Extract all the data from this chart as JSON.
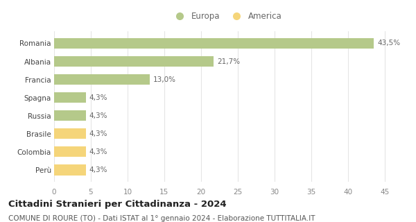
{
  "categories": [
    "Perù",
    "Colombia",
    "Brasile",
    "Russia",
    "Spagna",
    "Francia",
    "Albania",
    "Romania"
  ],
  "values": [
    4.3,
    4.3,
    4.3,
    4.3,
    4.3,
    13.0,
    21.7,
    43.5
  ],
  "labels": [
    "4,3%",
    "4,3%",
    "4,3%",
    "4,3%",
    "4,3%",
    "13,0%",
    "21,7%",
    "43,5%"
  ],
  "colors": [
    "#f5d57a",
    "#f5d57a",
    "#f5d57a",
    "#b5c98a",
    "#b5c98a",
    "#b5c98a",
    "#b5c98a",
    "#b5c98a"
  ],
  "europa_color": "#b5c98a",
  "america_color": "#f5d57a",
  "title": "Cittadini Stranieri per Cittadinanza - 2024",
  "subtitle": "COMUNE DI ROURE (TO) - Dati ISTAT al 1° gennaio 2024 - Elaborazione TUTTITALIA.IT",
  "xlim": [
    0,
    47
  ],
  "xticks": [
    0,
    5,
    10,
    15,
    20,
    25,
    30,
    35,
    40,
    45
  ],
  "grid_color": "#e5e5e5",
  "background_color": "#ffffff",
  "bar_height": 0.6,
  "title_fontsize": 9.5,
  "subtitle_fontsize": 7.5,
  "label_fontsize": 7.5,
  "tick_fontsize": 7.5,
  "legend_fontsize": 8.5
}
